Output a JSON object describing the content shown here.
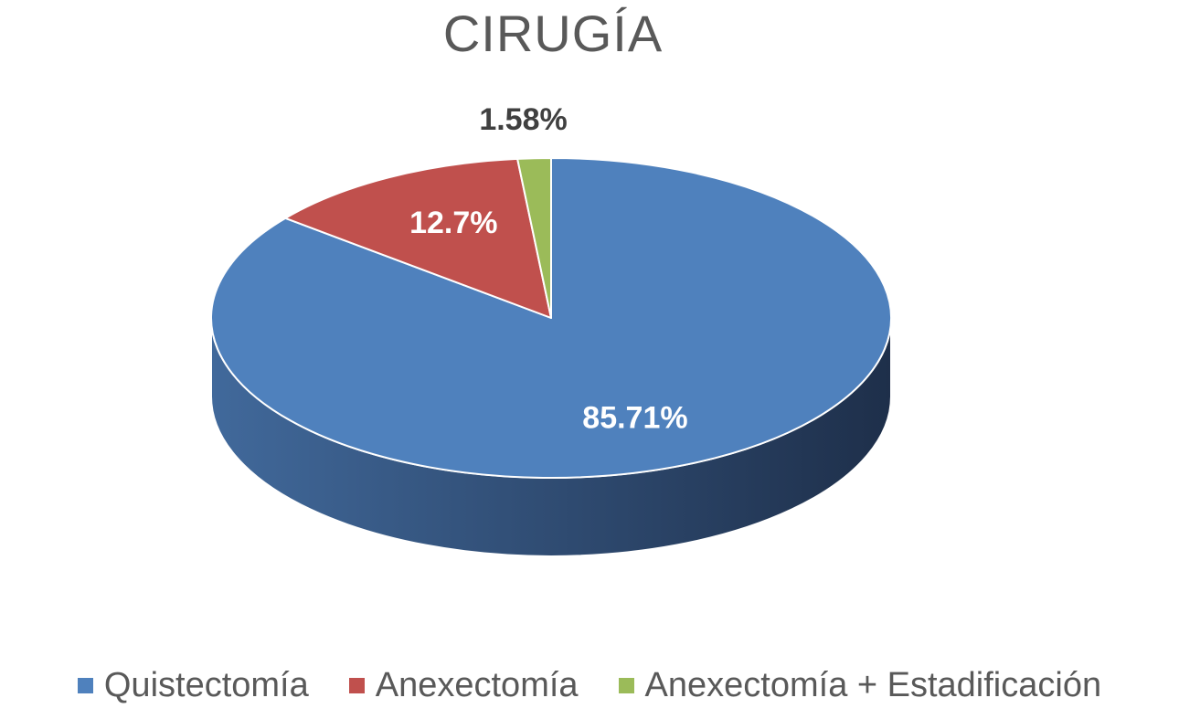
{
  "chart_data": {
    "type": "pie",
    "title": "CIRUGÍA",
    "slices": [
      {
        "name": "Quistectomía",
        "value": 85.71,
        "label": "85.71%",
        "color": "#4f81bd",
        "label_color": "#ffffff"
      },
      {
        "name": "Anexectomía",
        "value": 12.7,
        "label": "12.7%",
        "color": "#c0504d",
        "label_color": "#ffffff"
      },
      {
        "name": "Anexectomía + Estadificación",
        "value": 1.58,
        "label": "1.58%",
        "color": "#9bbb59",
        "label_color": "#404040"
      }
    ],
    "start_position": "top",
    "direction": "clockwise",
    "style": "3d",
    "legend_position": "bottom",
    "depth_color_light": "#41699b",
    "depth_color_dark": "#1e2f4a"
  }
}
